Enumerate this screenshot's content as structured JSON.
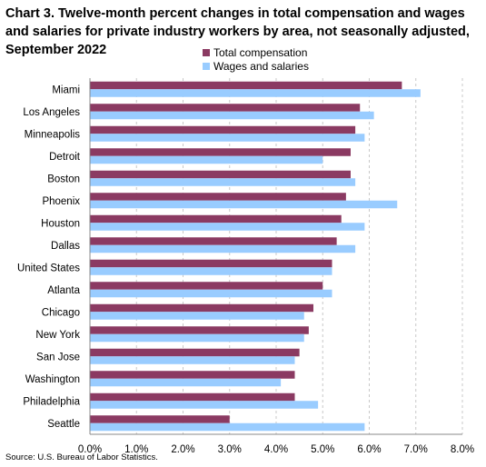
{
  "chart_data": {
    "type": "bar",
    "orientation": "horizontal",
    "title": "Chart 3. Twelve-month percent changes in total compensation and wages and salaries for private industry workers by area, not seasonally adjusted, September 2022",
    "categories": [
      "Miami",
      "Los Angeles",
      "Minneapolis",
      "Detroit",
      "Boston",
      "Phoenix",
      "Houston",
      "Dallas",
      "United States",
      "Atlanta",
      "Chicago",
      "New York",
      "San Jose",
      "Washington",
      "Philadelphia",
      "Seattle"
    ],
    "series": [
      {
        "name": "Total compensation",
        "color": "#8b3a62",
        "values": [
          6.7,
          5.8,
          5.7,
          5.6,
          5.6,
          5.5,
          5.4,
          5.3,
          5.2,
          5.0,
          4.8,
          4.7,
          4.5,
          4.4,
          4.4,
          3.0
        ]
      },
      {
        "name": "Wages and salaries",
        "color": "#99ccff",
        "values": [
          7.1,
          6.1,
          5.9,
          5.0,
          5.7,
          6.6,
          5.9,
          5.7,
          5.2,
          5.2,
          4.6,
          4.6,
          4.4,
          4.1,
          4.9,
          5.9
        ]
      }
    ],
    "xlim": [
      0,
      8
    ],
    "xticks": [
      "0.0%",
      "1.0%",
      "2.0%",
      "3.0%",
      "4.0%",
      "5.0%",
      "6.0%",
      "7.0%",
      "8.0%"
    ],
    "grid": true,
    "legend": "top"
  },
  "source": "Source: U.S. Bureau of Labor Statistics."
}
